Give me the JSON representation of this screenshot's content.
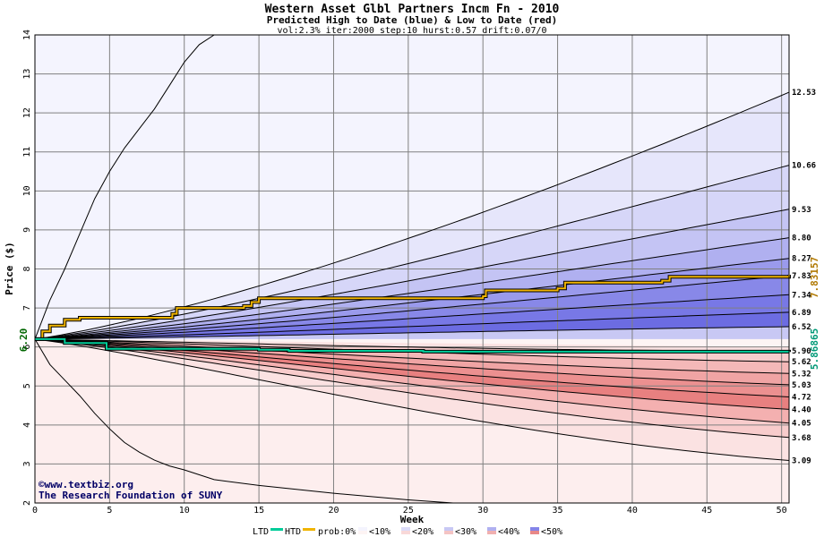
{
  "chart_data": {
    "type": "area",
    "title": "Western Asset Glbl Partners Incm Fn - 2010",
    "subtitle": "Predicted High to Date (blue) &  Low to Date (red)",
    "params": "vol:2.3% iter:2000 step:10 hurst:0.57 drift:0.07/0",
    "xlabel": "Week",
    "ylabel": "Price ($)",
    "xlim": [
      0,
      50.5
    ],
    "ylim": [
      2,
      14
    ],
    "x_ticks": [
      0,
      5,
      10,
      15,
      20,
      25,
      30,
      35,
      40,
      45,
      50
    ],
    "y_ticks": [
      2,
      3,
      4,
      5,
      6,
      7,
      8,
      9,
      10,
      11,
      12,
      13,
      14
    ],
    "grid": true,
    "start_price": 6.2,
    "start_label": "6.20",
    "high_percentile_curves": [
      {
        "end_label": "12.53",
        "end": 12.53,
        "mid": 9.4
      },
      {
        "end_label": "10.66",
        "end": 10.66,
        "mid": 8.6
      },
      {
        "end_label": "9.53",
        "end": 9.53,
        "mid": 8.05
      },
      {
        "end_label": "8.80",
        "end": 8.8,
        "mid": 7.65
      },
      {
        "end_label": "8.27",
        "end": 8.27,
        "mid": 7.35
      },
      {
        "end_label": "7.83",
        "end": 7.83,
        "mid": 7.1
      },
      {
        "end_label": "7.34",
        "end": 7.34,
        "mid": 6.85
      },
      {
        "end_label": "6.89",
        "end": 6.89,
        "mid": 6.6
      },
      {
        "end_label": "6.52",
        "end": 6.52,
        "mid": 6.4
      }
    ],
    "low_percentile_curves": [
      {
        "end_label": "5.90",
        "end": 5.9,
        "mid": 5.95
      },
      {
        "end_label": "5.62",
        "end": 5.62,
        "mid": 5.8
      },
      {
        "end_label": "5.32",
        "end": 5.32,
        "mid": 5.6
      },
      {
        "end_label": "5.03",
        "end": 5.03,
        "mid": 5.42
      },
      {
        "end_label": "4.72",
        "end": 4.72,
        "mid": 5.22
      },
      {
        "end_label": "4.40",
        "end": 4.4,
        "mid": 5.02
      },
      {
        "end_label": "4.05",
        "end": 4.05,
        "mid": 4.78
      },
      {
        "end_label": "3.68",
        "end": 3.68,
        "mid": 4.5
      },
      {
        "end_label": "3.09",
        "end": 3.09,
        "mid": 4.0
      }
    ],
    "outer_high_curve": [
      [
        0,
        6.2
      ],
      [
        1,
        7.2
      ],
      [
        2,
        8.0
      ],
      [
        3,
        8.9
      ],
      [
        4,
        9.8
      ],
      [
        5,
        10.5
      ],
      [
        6,
        11.1
      ],
      [
        7,
        11.6
      ],
      [
        8,
        12.1
      ],
      [
        9,
        12.7
      ],
      [
        10,
        13.3
      ],
      [
        11,
        13.75
      ],
      [
        12,
        14.0
      ]
    ],
    "outer_low_curve": [
      [
        0,
        6.2
      ],
      [
        1,
        5.55
      ],
      [
        2,
        5.15
      ],
      [
        3,
        4.75
      ],
      [
        4,
        4.3
      ],
      [
        5,
        3.9
      ],
      [
        6,
        3.55
      ],
      [
        7,
        3.3
      ],
      [
        8,
        3.1
      ],
      [
        9,
        2.95
      ],
      [
        10,
        2.85
      ],
      [
        12,
        2.6
      ],
      [
        15,
        2.45
      ],
      [
        20,
        2.25
      ],
      [
        25,
        2.08
      ],
      [
        28,
        2.0
      ]
    ],
    "predicted_high_path": [
      [
        0,
        6.2
      ],
      [
        0.5,
        6.4
      ],
      [
        1,
        6.55
      ],
      [
        2,
        6.7
      ],
      [
        3,
        6.75
      ],
      [
        9,
        6.75
      ],
      [
        9.2,
        6.85
      ],
      [
        9.5,
        7.0
      ],
      [
        14,
        7.05
      ],
      [
        14.5,
        7.15
      ],
      [
        15,
        7.25
      ],
      [
        30,
        7.3
      ],
      [
        30.2,
        7.45
      ],
      [
        35,
        7.5
      ],
      [
        35.5,
        7.65
      ],
      [
        42,
        7.7
      ],
      [
        42.5,
        7.8
      ],
      [
        50.5,
        7.85
      ]
    ],
    "predicted_high_end_label": "7.83157",
    "predicted_low_path": [
      [
        0,
        6.2
      ],
      [
        2,
        6.1
      ],
      [
        4.5,
        6.1
      ],
      [
        4.8,
        5.95
      ],
      [
        15,
        5.93
      ],
      [
        17,
        5.9
      ],
      [
        25,
        5.9
      ],
      [
        26,
        5.88
      ],
      [
        50.5,
        5.87
      ]
    ],
    "predicted_low_end_label": "5.86865",
    "credit_line1": "©www.textbiz.org",
    "credit_line2": "The Research Foundation of SUNY",
    "legend": {
      "ltd": "LTD",
      "htd": "HTD",
      "prob_prefix": "prob:0%",
      "bins": [
        "<10%",
        "<20%",
        "<30%",
        "<40%",
        "<50%"
      ],
      "colors": {
        "ltd": "#00cc99",
        "htd": "#f0b400",
        "high_bands": [
          "#ececfc",
          "#dcdcf8",
          "#c8c8f4",
          "#b4b4f0",
          "#9c9cec",
          "#8484e8",
          "#7070e4"
        ],
        "low_bands": [
          "#fcecec",
          "#f8d8d8",
          "#f4c4c4",
          "#f0b0b0",
          "#ec9c9c",
          "#e88888",
          "#e47474"
        ],
        "grid": "#808080"
      }
    }
  }
}
